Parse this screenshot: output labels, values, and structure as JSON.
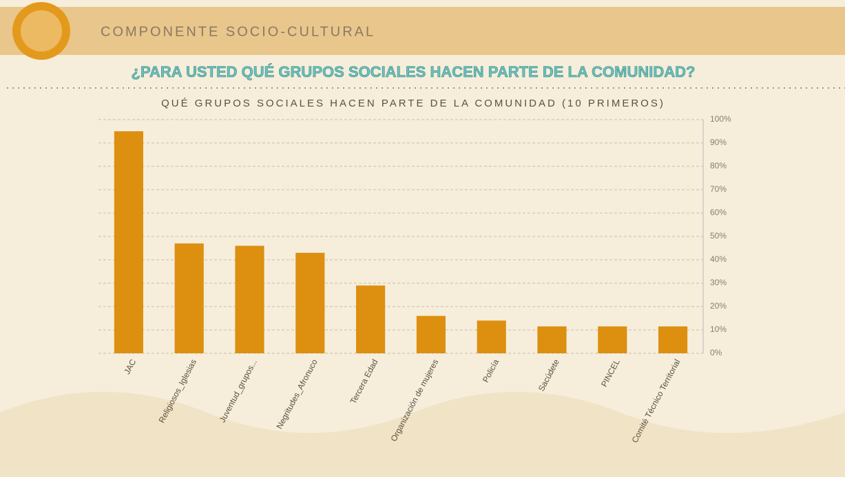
{
  "header": {
    "section": "COMPONENTE SOCIO-CULTURAL",
    "question": "¿PARA USTED QUÉ GRUPOS SOCIALES HACEN PARTE DE LA COMUNIDAD?"
  },
  "chart_data": {
    "type": "bar",
    "title": "QUÉ GRUPOS SOCIALES HACEN PARTE DE LA COMUNIDAD (10 PRIMEROS)",
    "categories": [
      "JAC",
      "Religiosos_Iglesias",
      "Juventud_grupos...",
      "Negritudes_Afronuco",
      "Tercera Edad",
      "Organización de mujeres",
      "Policía",
      "Sacúdete",
      "PINCEL",
      "Comité Técnico Territorial"
    ],
    "values": [
      95,
      47,
      46,
      43,
      29,
      16,
      14,
      11.5,
      11.5,
      11.5
    ],
    "color": "#dd8f10",
    "ylim": [
      0,
      100
    ],
    "yticks": [
      {
        "value": 0,
        "label": "0%"
      },
      {
        "value": 10,
        "label": "10%"
      },
      {
        "value": 20,
        "label": "20%"
      },
      {
        "value": 30,
        "label": "30%"
      },
      {
        "value": 40,
        "label": "40%"
      },
      {
        "value": 50,
        "label": "50%"
      },
      {
        "value": 60,
        "label": "60%"
      },
      {
        "value": 70,
        "label": "70%"
      },
      {
        "value": 80,
        "label": "80%"
      },
      {
        "value": 90,
        "label": "90%"
      },
      {
        "value": 100,
        "label": "100%"
      }
    ],
    "grid": true
  }
}
